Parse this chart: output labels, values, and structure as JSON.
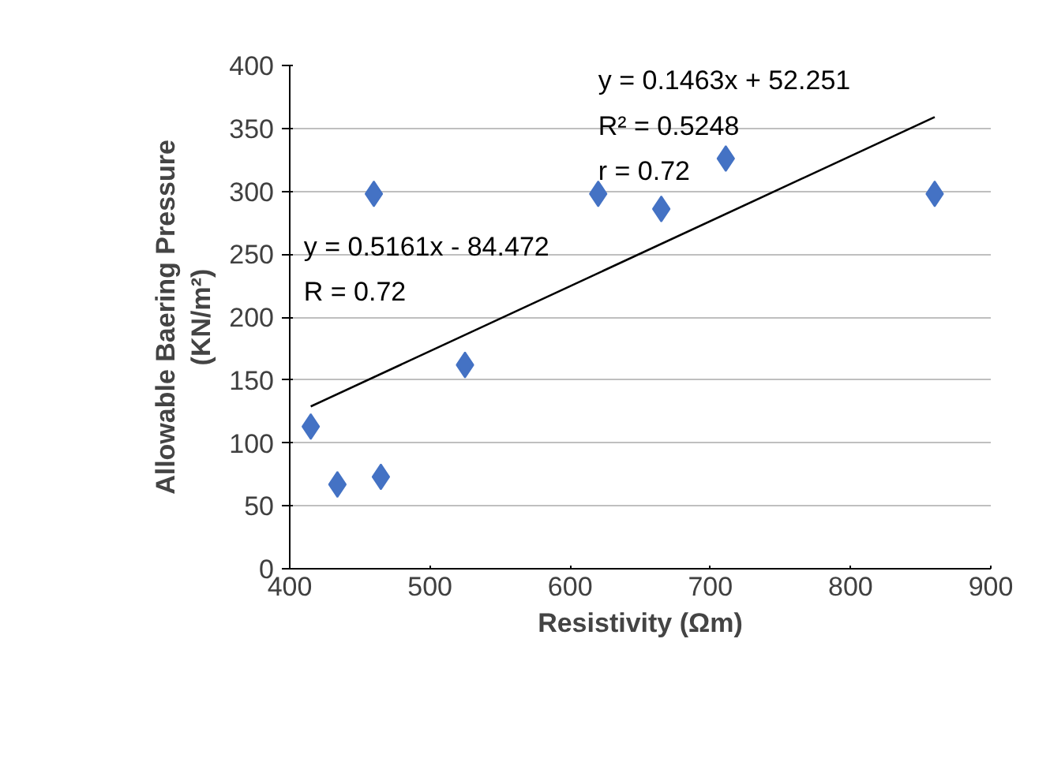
{
  "chart_data": {
    "type": "scatter",
    "xlabel": "Resistivity (Ωm)",
    "ylabel": "Allowable Baering Pressure\n(KN/m²)",
    "xlim": [
      400,
      900
    ],
    "xticks": [
      400,
      500,
      600,
      700,
      800,
      900
    ],
    "ylim": [
      0,
      400
    ],
    "yticks": [
      0,
      50,
      100,
      150,
      200,
      250,
      300,
      350,
      400
    ],
    "grid": "y",
    "series": [
      {
        "marker": "diamond",
        "color": "#4472c4",
        "x": [
          415,
          434,
          465,
          460,
          525,
          620,
          665,
          711,
          860
        ],
        "values": [
          113,
          67,
          73,
          298,
          162,
          298,
          286,
          326,
          298
        ]
      },
      {
        "type": "line",
        "marker": "none",
        "color": "#000000",
        "x": [
          415,
          860
        ],
        "values": [
          129,
          359
        ]
      }
    ],
    "annotations": [
      "y = 0.1463x + 52.251",
      "R² = 0.5248",
      "r = 0.72",
      "y = 0.5161x - 84.472",
      "R = 0.72"
    ]
  }
}
